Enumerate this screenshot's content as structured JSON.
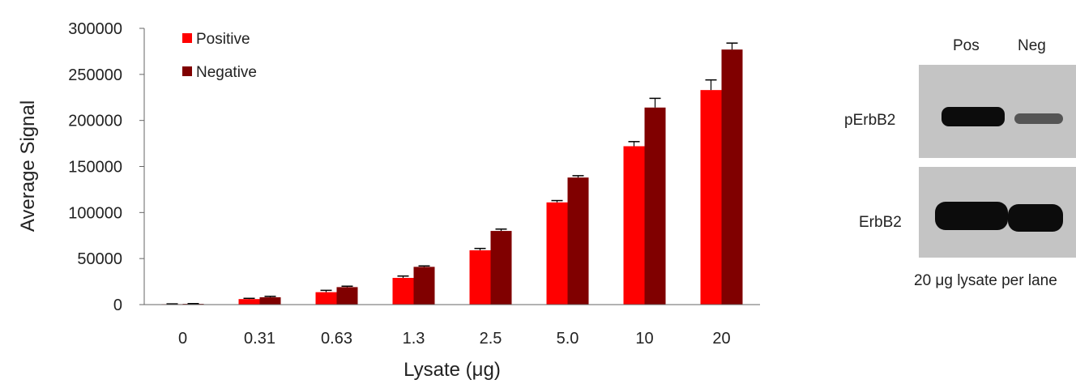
{
  "chart_data": {
    "type": "bar",
    "title": "",
    "xlabel": "Lysate (μg)",
    "ylabel": "Average Signal",
    "categories": [
      "0",
      "0.31",
      "0.63",
      "1.3",
      "2.5",
      "5.0",
      "10",
      "20"
    ],
    "ylim": [
      0,
      300000
    ],
    "yticks": [
      "0",
      "50000",
      "100000",
      "150000",
      "200000",
      "250000",
      "300000"
    ],
    "grid": false,
    "legend": "top-left",
    "series": [
      {
        "name": "Positive",
        "color": "#ff0000",
        "values": [
          500,
          6000,
          13500,
          29000,
          59000,
          111000,
          172000,
          233000
        ],
        "errors": [
          300,
          800,
          2000,
          2000,
          2000,
          2000,
          5000,
          11000
        ]
      },
      {
        "name": "Negative",
        "color": "#800000",
        "values": [
          800,
          8000,
          19000,
          41000,
          80000,
          138000,
          214000,
          277000
        ],
        "errors": [
          300,
          1000,
          1000,
          1000,
          2000,
          2000,
          10000,
          7000
        ]
      }
    ]
  },
  "blot": {
    "lanes": [
      "Pos",
      "Neg"
    ],
    "rows": [
      {
        "label": "pErbB2",
        "band_intensity": [
          1.0,
          0.3
        ]
      },
      {
        "label": "ErbB2",
        "band_intensity": [
          1.0,
          1.0
        ]
      }
    ],
    "caption": "20 μg lysate per lane"
  }
}
